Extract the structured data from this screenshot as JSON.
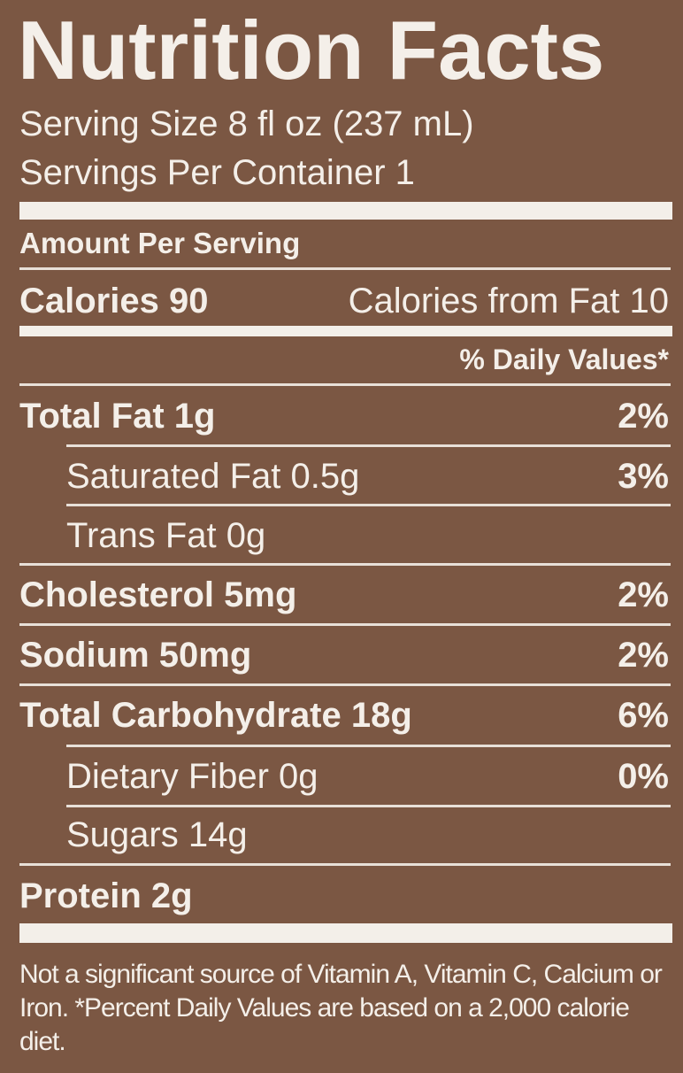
{
  "label": {
    "title": "Nutrition Facts",
    "serving_size": "Serving Size 8 fl oz (237 mL)",
    "servings_per_container": "Servings Per Container 1",
    "amount_per_serving": "Amount Per Serving",
    "calories": "Calories 90",
    "calories_from_fat": "Calories from Fat 10",
    "daily_values_header": "% Daily Values*",
    "rows": [
      {
        "nutrient": "Total Fat 1g",
        "daily_value": "2%"
      },
      {
        "nutrient": "Saturated Fat 0.5g",
        "daily_value": "3%"
      },
      {
        "nutrient": "Trans Fat 0g"
      },
      {
        "nutrient": "Cholesterol 5mg",
        "daily_value": "2%"
      },
      {
        "nutrient": "Sodium 50mg",
        "daily_value": "2%"
      },
      {
        "nutrient": "Total Carbohydrate 18g",
        "daily_value": "6%"
      },
      {
        "nutrient": "Dietary Fiber 0g",
        "daily_value": "0%"
      },
      {
        "nutrient": "Sugars 14g"
      },
      {
        "nutrient": "Protein 2g"
      }
    ],
    "footnote": "Not a significant source of Vitamin A, Vitamin C, Calcium or Iron. *Percent Daily Values are based on a 2,000 calorie diet."
  }
}
